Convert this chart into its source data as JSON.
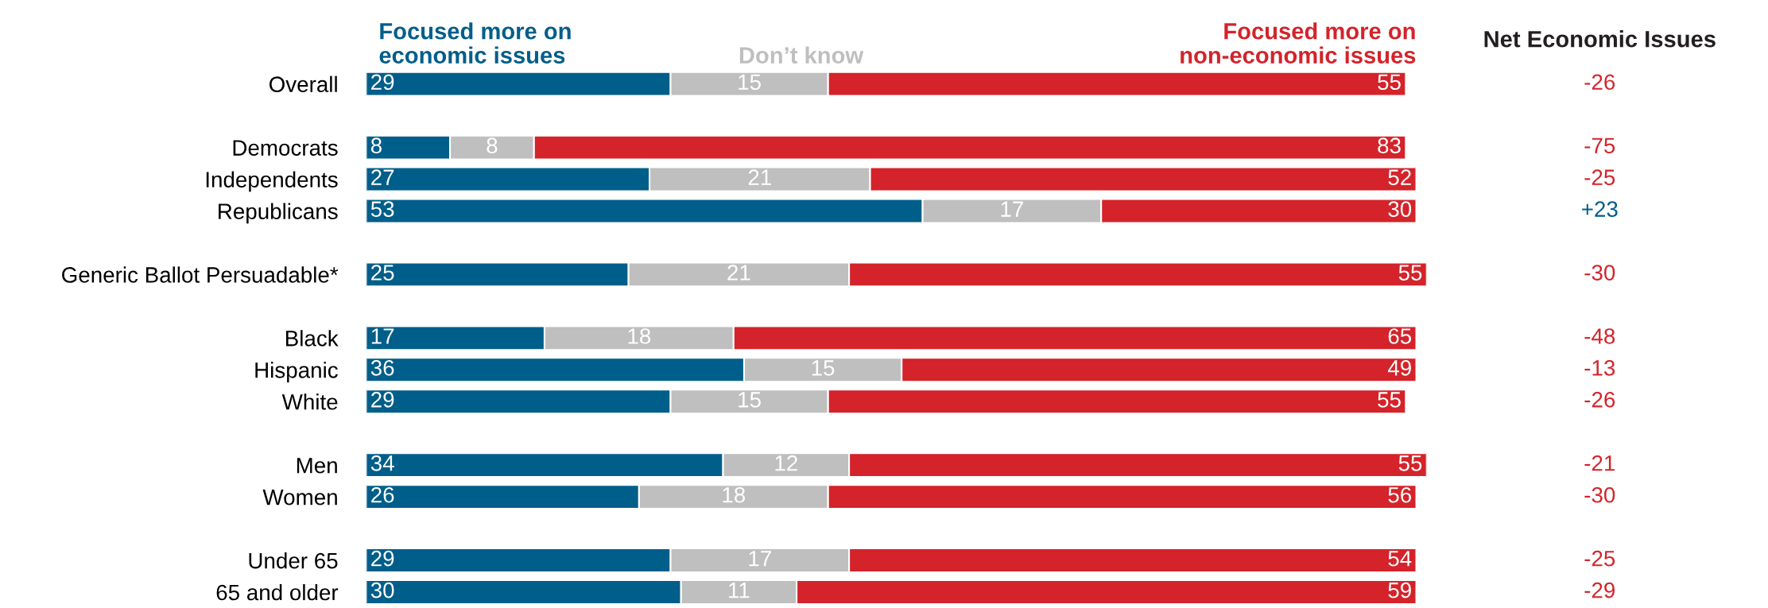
{
  "chart_data": {
    "type": "bar",
    "orientation": "horizontal",
    "stacked": true,
    "data_labels": true,
    "legend": "top",
    "grid": false,
    "tick_labels": "y",
    "categories": [
      "Overall",
      null,
      "Democrats",
      "Independents",
      "Republicans",
      null,
      "Generic Ballot Persuadable*",
      null,
      "Black",
      "Hispanic",
      "White",
      null,
      "Men",
      "Women",
      null,
      "Under 65",
      "65 and older"
    ],
    "series": [
      {
        "name": "Focused more on economic issues",
        "color": "#005e8a",
        "values": [
          29,
          null,
          8,
          27,
          53,
          null,
          25,
          null,
          17,
          36,
          29,
          null,
          34,
          26,
          null,
          29,
          30
        ]
      },
      {
        "name": "Don’t know",
        "color": "#bfbfbf",
        "values": [
          15,
          null,
          8,
          21,
          17,
          null,
          21,
          null,
          18,
          15,
          15,
          null,
          12,
          18,
          null,
          17,
          11
        ]
      },
      {
        "name": "Focused more on non-economic issues",
        "color": "#d4232a",
        "values": [
          55,
          null,
          83,
          52,
          30,
          null,
          55,
          null,
          65,
          49,
          55,
          null,
          55,
          56,
          null,
          54,
          59
        ]
      }
    ],
    "annotations": [
      "Net Economic Issues",
      "-26",
      null,
      "-75",
      "-25",
      "+23",
      null,
      "-30",
      null,
      "-48",
      "-13",
      "-26",
      null,
      "-21",
      "-30",
      null,
      "-25",
      "-29"
    ]
  }
}
